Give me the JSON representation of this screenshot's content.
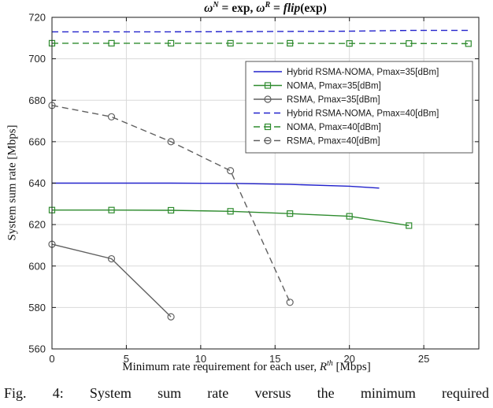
{
  "title": {
    "omega1": "ω",
    "sup1": "N",
    "mid1": " = exp, ",
    "omega2": "ω",
    "sup2": "R",
    "mid2": " = ",
    "flip": "flip",
    "tail": "(exp)"
  },
  "axes": {
    "y_label": "System sum rate [Mbps]",
    "x_label_prefix": "Minimum rate requirement for each user, ",
    "x_label_var": "R",
    "x_label_sup": "th",
    "x_label_suffix": " [Mbps]"
  },
  "caption": {
    "prefix": "Fig. 4:",
    "text": " System sum rate versus the minimum required"
  },
  "chart_data": {
    "type": "line",
    "title": "omega^N = exp, omega^R = flip(exp)",
    "xlabel": "Minimum rate requirement for each user, R^th [Mbps]",
    "ylabel": "System sum rate [Mbps]",
    "xlim": [
      0,
      28.7
    ],
    "ylim": [
      560,
      720
    ],
    "x_ticks": [
      0,
      5,
      10,
      15,
      20,
      25
    ],
    "y_ticks": [
      560,
      580,
      600,
      620,
      640,
      660,
      680,
      700,
      720
    ],
    "grid": true,
    "legend_position": "upper-right-inside",
    "colors": {
      "blue": "#2222cc",
      "green": "#2e8b2e",
      "gray": "#606060",
      "grid": "#d9d9d9",
      "axis": "#1a1a1a",
      "tick_text": "#262626"
    },
    "series": [
      {
        "name": "Hybrid RSMA-NOMA, Pmax=35[dBm]",
        "color": "#2222cc",
        "style": "solid",
        "marker": "none",
        "x": [
          0,
          4,
          8,
          12,
          16,
          20,
          22
        ],
        "y": [
          640,
          640,
          640,
          639.9,
          639.4,
          638.5,
          637.6
        ]
      },
      {
        "name": "NOMA, Pmax=35[dBm]",
        "color": "#2e8b2e",
        "style": "solid",
        "marker": "square",
        "x": [
          0,
          4,
          8,
          12,
          16,
          20,
          24
        ],
        "y": [
          627,
          627,
          626.9,
          626.4,
          625.3,
          624,
          619.5
        ]
      },
      {
        "name": "RSMA, Pmax=35[dBm]",
        "color": "#606060",
        "style": "solid",
        "marker": "circle",
        "x": [
          0,
          4,
          8
        ],
        "y": [
          610.5,
          603.5,
          575.5
        ]
      },
      {
        "name": "Hybrid RSMA-NOMA, Pmax=40[dBm]",
        "color": "#2222cc",
        "style": "dashed",
        "marker": "none",
        "x": [
          0,
          4,
          8,
          12,
          16,
          20,
          24,
          28
        ],
        "y": [
          713,
          713,
          713,
          713.1,
          713.2,
          713.3,
          713.7,
          713.7
        ]
      },
      {
        "name": "NOMA, Pmax=40[dBm]",
        "color": "#2e8b2e",
        "style": "dashed",
        "marker": "square",
        "x": [
          0,
          4,
          8,
          12,
          16,
          20,
          24,
          28
        ],
        "y": [
          707.5,
          707.5,
          707.5,
          707.5,
          707.5,
          707.4,
          707.4,
          707.3
        ]
      },
      {
        "name": "RSMA, Pmax=40[dBm]",
        "color": "#606060",
        "style": "dashed",
        "marker": "circle",
        "x": [
          0,
          4,
          8,
          12,
          16
        ],
        "y": [
          677.5,
          672,
          660,
          646,
          582.5
        ]
      }
    ]
  }
}
